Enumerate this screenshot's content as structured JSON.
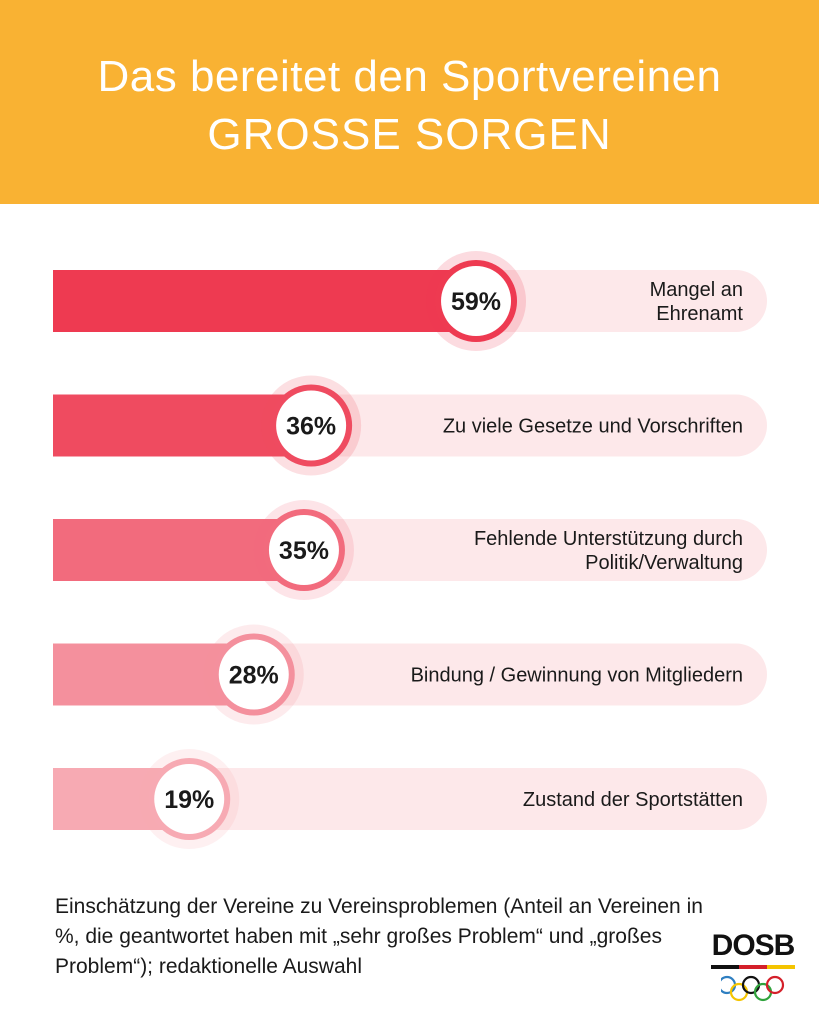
{
  "header": {
    "title_line1": "Das bereitet den Sportvereinen",
    "title_line2": "GROSSE SORGEN"
  },
  "colors": {
    "header_bg": "#f9b233",
    "track": "#fde8ea",
    "bar_colors": [
      "#ee3a51",
      "#ef4b60",
      "#f26b7d",
      "#f4909d",
      "#f7aab3"
    ]
  },
  "chart_data": {
    "type": "bar",
    "orientation": "horizontal",
    "unit": "%",
    "categories": [
      [
        "Mangel an",
        "Ehrenamt"
      ],
      [
        "Zu viele Gesetze und Vorschriften"
      ],
      [
        "Fehlende Unterstützung durch",
        "Politik/Verwaltung"
      ],
      [
        "Bindung / Gewinnung von Mitgliedern"
      ],
      [
        "Zustand der Sportstätten"
      ]
    ],
    "values": [
      59,
      36,
      35,
      28,
      19
    ],
    "value_labels": [
      "59%",
      "36%",
      "35%",
      "28%",
      "19%"
    ],
    "xlim": [
      0,
      100
    ]
  },
  "footnote": "Einschätzung der Vereine zu Vereinsproblemen (Anteil an Vereinen in %, die geantwortet haben mit „sehr großes Problem“ und „großes Problem“); redaktionelle Auswahl",
  "logo": {
    "text": "DOSB",
    "stripe_colors": [
      "#111111",
      "#d4202a",
      "#f4c400"
    ],
    "ring_colors": [
      "#2f7fc1",
      "#f4c400",
      "#111111",
      "#2fa33c",
      "#d4202a"
    ]
  }
}
